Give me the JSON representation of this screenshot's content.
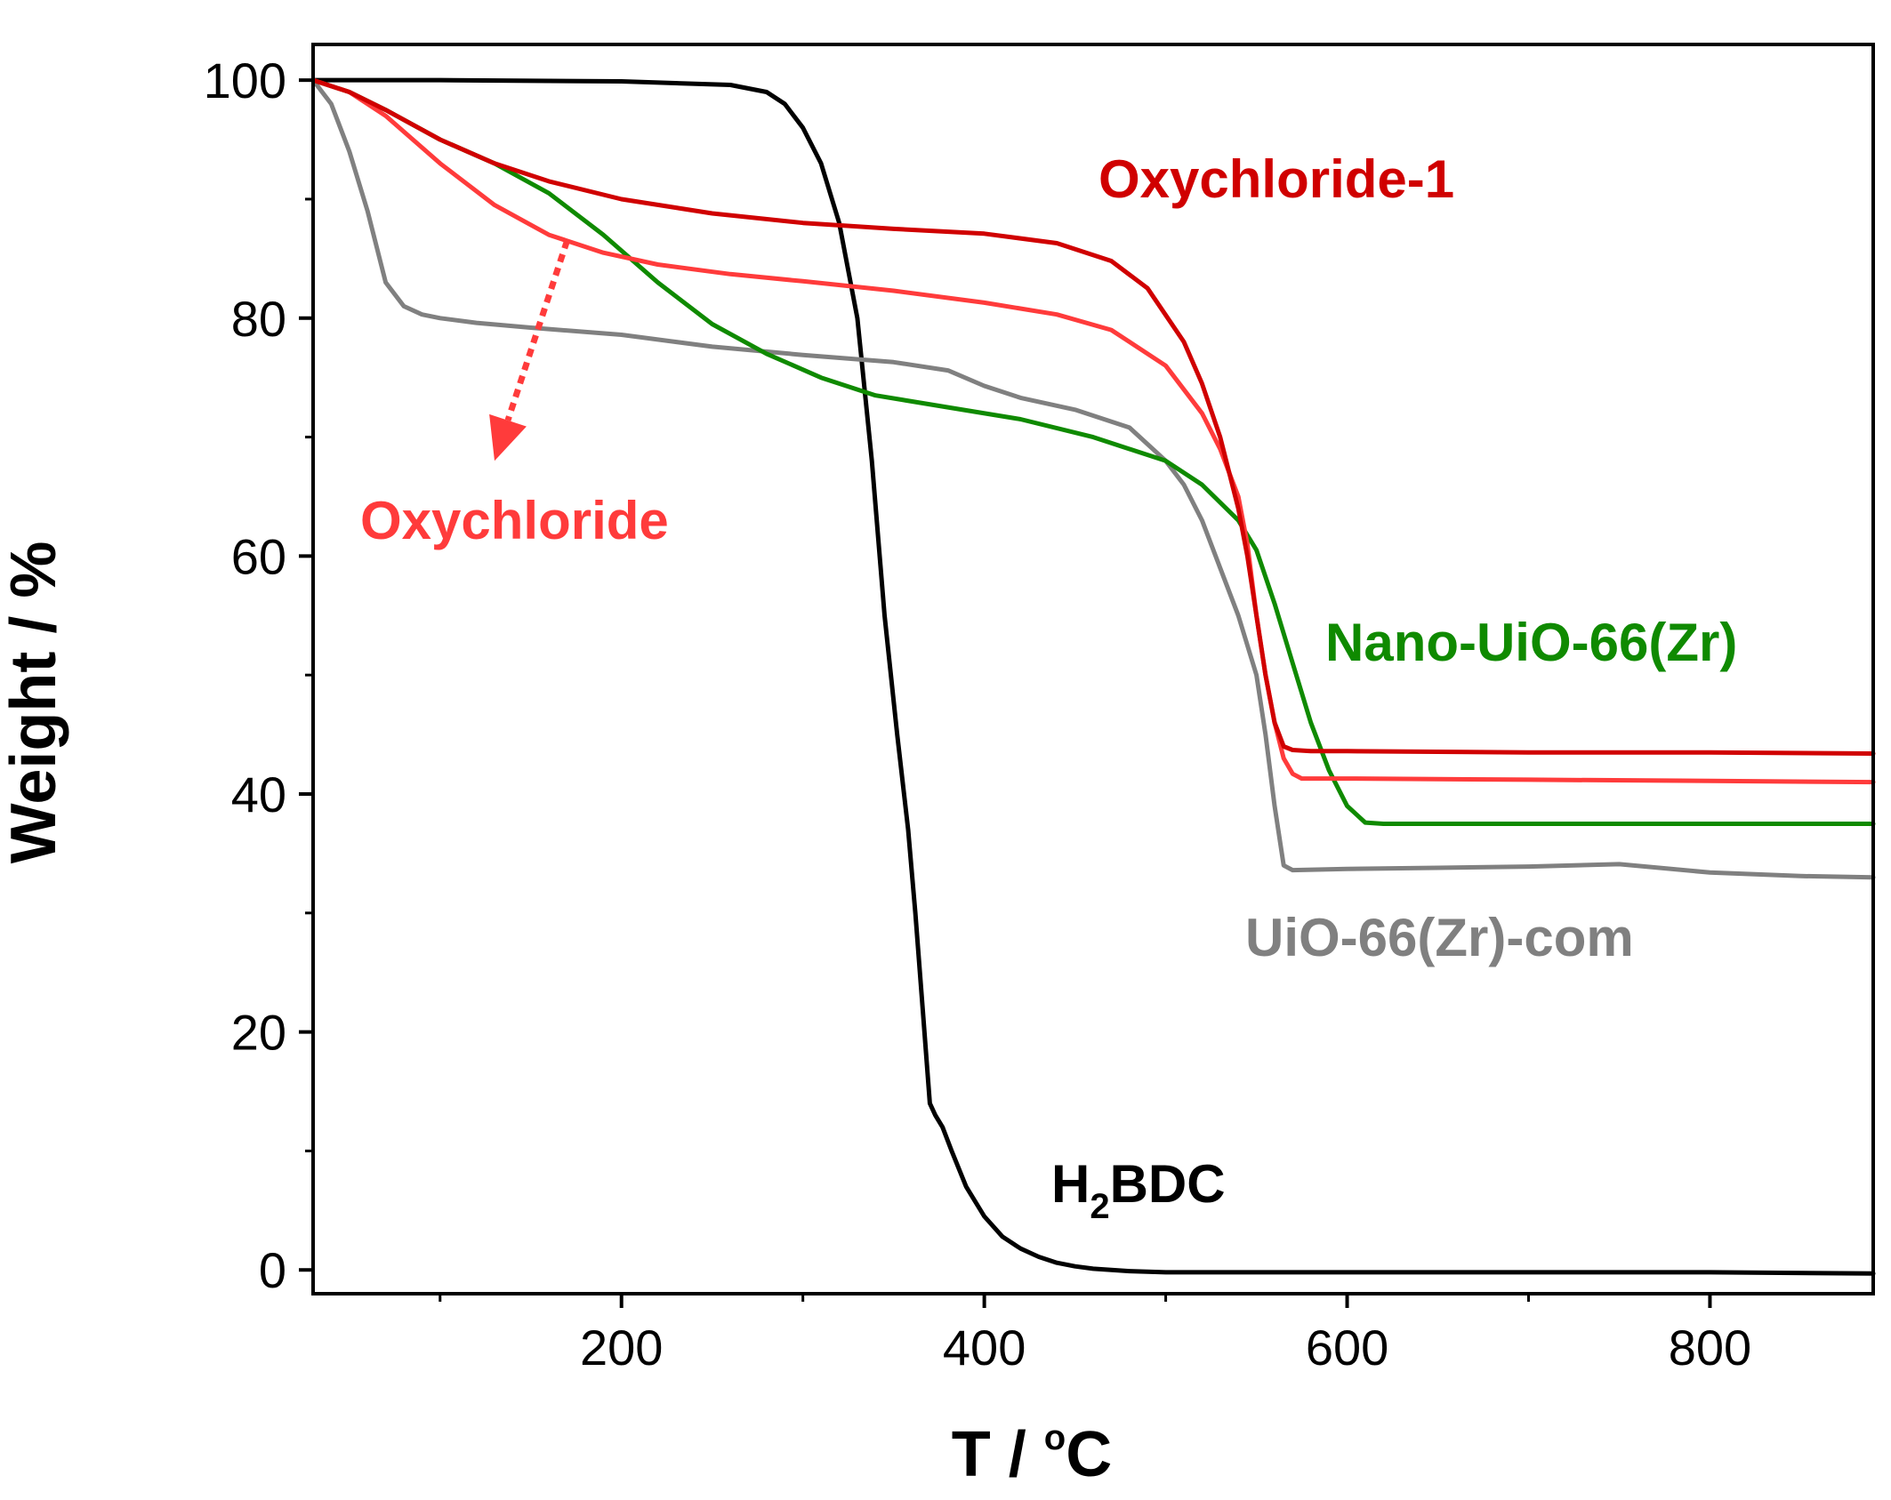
{
  "chart_data": {
    "type": "line",
    "title": "",
    "xlabel": {
      "main": "T / ",
      "sup": "o",
      "unit": "C"
    },
    "ylabel": "Weight / %",
    "xlim": [
      30,
      890
    ],
    "ylim": [
      -2,
      103
    ],
    "xticks": [
      200,
      400,
      600,
      800
    ],
    "xminor": [
      100,
      300,
      500,
      700
    ],
    "yticks": [
      0,
      20,
      40,
      60,
      80,
      100
    ],
    "yminor": [
      10,
      30,
      50,
      70,
      90
    ],
    "grid": false,
    "series": [
      {
        "name": "H2BDC",
        "color": "#000000",
        "x": [
          30,
          100,
          200,
          260,
          280,
          290,
          300,
          310,
          320,
          330,
          338,
          345,
          352,
          358,
          362,
          366,
          370,
          373,
          377,
          382,
          390,
          400,
          410,
          420,
          430,
          440,
          450,
          460,
          480,
          500,
          600,
          700,
          800,
          890
        ],
        "y": [
          100,
          100,
          99.9,
          99.6,
          99,
          98,
          96,
          93,
          88,
          80,
          68,
          55,
          45,
          37,
          30,
          22,
          14,
          13,
          12,
          10,
          7,
          4.5,
          2.8,
          1.8,
          1.1,
          0.6,
          0.3,
          0.1,
          -0.1,
          -0.2,
          -0.2,
          -0.2,
          -0.2,
          -0.3
        ]
      },
      {
        "name": "UiO-66(Zr)-com",
        "color": "#808080",
        "x": [
          30,
          40,
          50,
          60,
          70,
          80,
          90,
          100,
          120,
          150,
          200,
          250,
          300,
          350,
          380,
          400,
          420,
          450,
          480,
          500,
          510,
          520,
          530,
          540,
          550,
          555,
          560,
          565,
          570,
          600,
          650,
          700,
          750,
          800,
          850,
          890
        ],
        "y": [
          100,
          98,
          94,
          89,
          83,
          81,
          80.3,
          80,
          79.6,
          79.2,
          78.6,
          77.6,
          76.9,
          76.3,
          75.6,
          74.3,
          73.3,
          72.3,
          70.8,
          68,
          66,
          63,
          59,
          55,
          50,
          45,
          39,
          34,
          33.6,
          33.7,
          33.8,
          33.9,
          34.1,
          33.4,
          33.1,
          33
        ]
      },
      {
        "name": "Nano-UiO-66(Zr)",
        "color": "#0f8a00",
        "x": [
          30,
          50,
          70,
          100,
          130,
          160,
          190,
          220,
          250,
          280,
          310,
          340,
          380,
          420,
          460,
          500,
          520,
          540,
          550,
          560,
          570,
          580,
          590,
          600,
          610,
          620,
          700,
          800,
          890
        ],
        "y": [
          100,
          99,
          97.5,
          95,
          93,
          90.5,
          87,
          83,
          79.5,
          77,
          75,
          73.5,
          72.5,
          71.5,
          70,
          68,
          66,
          63,
          60.5,
          56,
          51,
          46,
          42,
          39,
          37.6,
          37.5,
          37.5,
          37.5,
          37.5
        ]
      },
      {
        "name": "Oxychloride",
        "color": "#ff3b3b",
        "x": [
          30,
          50,
          70,
          100,
          130,
          160,
          190,
          220,
          260,
          300,
          350,
          400,
          440,
          470,
          500,
          520,
          530,
          540,
          545,
          550,
          555,
          560,
          565,
          570,
          575,
          600,
          700,
          800,
          890
        ],
        "y": [
          100,
          99,
          97,
          93,
          89.5,
          87,
          85.5,
          84.5,
          83.7,
          83.1,
          82.3,
          81.3,
          80.3,
          79,
          76,
          72,
          69,
          65,
          61,
          55,
          50,
          46,
          43,
          41.7,
          41.3,
          41.3,
          41.2,
          41.1,
          41
        ]
      },
      {
        "name": "Oxychloride-1",
        "color": "#d00000",
        "x": [
          30,
          50,
          70,
          100,
          130,
          160,
          200,
          250,
          300,
          350,
          400,
          440,
          470,
          490,
          510,
          520,
          530,
          540,
          545,
          550,
          555,
          560,
          565,
          570,
          580,
          600,
          700,
          800,
          890
        ],
        "y": [
          100,
          99,
          97.5,
          95,
          93,
          91.5,
          90,
          88.8,
          88,
          87.5,
          87.1,
          86.3,
          84.8,
          82.5,
          78,
          74.5,
          70,
          64,
          60,
          55,
          50,
          46,
          44,
          43.7,
          43.6,
          43.6,
          43.5,
          43.5,
          43.4
        ]
      }
    ],
    "labels": [
      {
        "text": "Oxychloride-1",
        "color": "#d00000"
      },
      {
        "text": "Oxychloride",
        "color": "#ff3b3b"
      },
      {
        "text": "Nano-UiO-66(Zr)",
        "color": "#0f8a00"
      },
      {
        "text": "UiO-66(Zr)-com",
        "color": "#808080"
      },
      {
        "base": "H",
        "sub": "2",
        "rest": "BDC",
        "color": "#000000"
      }
    ],
    "annotation": {
      "type": "dotted-arrow",
      "color": "#ff3b3b",
      "from": [
        170,
        86.5
      ],
      "to": [
        130,
        68
      ]
    }
  }
}
